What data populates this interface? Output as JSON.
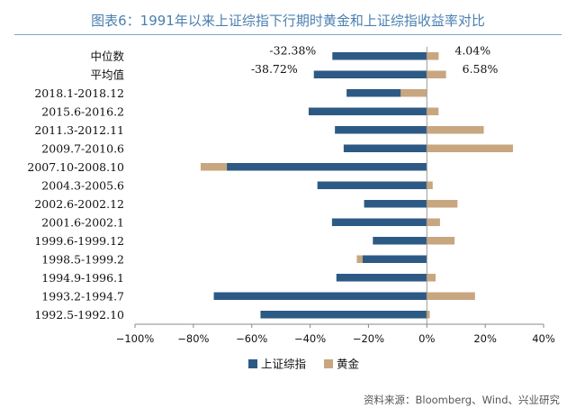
{
  "title": "图表6：1991年以来上证综指下行期时黄金和上证综指收益率对比",
  "source": "资料来源：Bloomberg、Wind、兴业研究",
  "colors": {
    "stock": "#2c5a84",
    "gold": "#c8a680",
    "title": "#4a7fb0"
  },
  "chart_data": {
    "type": "bar",
    "orientation": "horizontal",
    "categories": [
      "中位数",
      "平均值",
      "2018.1-2018.12",
      "2015.6-2016.2",
      "2011.3-2012.11",
      "2009.7-2010.6",
      "2007.10-2008.10",
      "2004.3-2005.6",
      "2002.6-2002.12",
      "2001.6-2002.1",
      "1999.6-1999.12",
      "1998.5-1999.2",
      "1994.9-1996.1",
      "1993.2-1994.7",
      "1992.5-1992.10"
    ],
    "series": [
      {
        "name": "上证综指",
        "values": [
          -32.38,
          -38.72,
          -27.5,
          -40.5,
          -31.5,
          -28.5,
          -68.5,
          -37.5,
          -21.5,
          -32.5,
          -18.5,
          -22,
          -31,
          -73,
          -57
        ],
        "color_key": "stock"
      },
      {
        "name": "黄金",
        "values": [
          4.04,
          6.58,
          -9,
          4,
          19.5,
          29.5,
          -77.5,
          2,
          10.5,
          4.5,
          9.5,
          -24,
          3,
          16.5,
          1
        ],
        "color_key": "gold"
      }
    ],
    "data_labels": [
      {
        "category": "中位数",
        "series": "上证综指",
        "text": "-32.38%"
      },
      {
        "category": "中位数",
        "series": "黄金",
        "text": "4.04%"
      },
      {
        "category": "平均值",
        "series": "上证综指",
        "text": "-38.72%"
      },
      {
        "category": "平均值",
        "series": "黄金",
        "text": "6.58%"
      }
    ],
    "xlim": [
      -100,
      40
    ],
    "x_ticks": [
      -100,
      -80,
      -60,
      -40,
      -20,
      0,
      20,
      40
    ],
    "x_tick_labels": [
      "−100%",
      "−80%",
      "−60%",
      "−40%",
      "−20%",
      "0%",
      "20%",
      "40%"
    ],
    "legend": {
      "placement": "bottom",
      "entries": [
        "上证综指",
        "黄金"
      ]
    },
    "grid": false
  }
}
